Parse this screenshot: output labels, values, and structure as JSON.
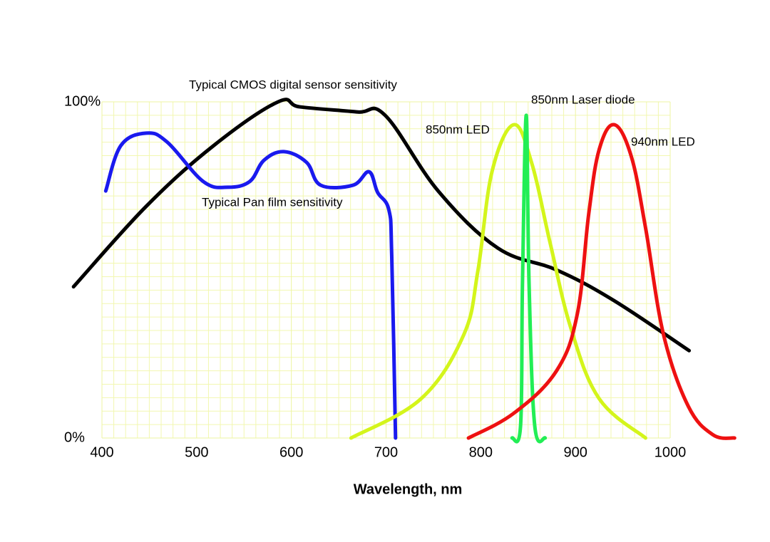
{
  "chart_data": {
    "type": "line",
    "xlabel": "Wavelength, nm",
    "xlim": [
      400,
      1000
    ],
    "xticks": [
      400,
      500,
      600,
      700,
      800,
      900,
      1000
    ],
    "ylim": [
      0,
      100
    ],
    "yticks": [
      {
        "value": 0,
        "label": "0%"
      },
      {
        "value": 100,
        "label": "100%"
      }
    ],
    "grid": true,
    "series": [
      {
        "name": "Typical CMOS digital sensor sensitivity",
        "color": "#000000",
        "x": [
          370,
          447,
          518,
          586,
          609,
          669,
          699,
          755,
          818,
          880,
          940,
          1020
        ],
        "values": [
          45,
          69,
          87,
          100,
          98.5,
          97,
          96,
          73.5,
          56.5,
          50,
          41,
          26
        ]
      },
      {
        "name": "Typical Pan film sensitivity",
        "color": "#1a1aee",
        "x": [
          404,
          420,
          447,
          469,
          507,
          533,
          556,
          571,
          592,
          616,
          631,
          665,
          682,
          691,
          703,
          706,
          710
        ],
        "values": [
          73.5,
          87,
          90.7,
          88,
          76.3,
          74.6,
          76.3,
          82.6,
          85.2,
          82,
          75.2,
          75.2,
          79.2,
          73.1,
          67.8,
          54,
          0
        ]
      },
      {
        "name": "850nm LED",
        "color": "#d4f51b",
        "x": [
          663,
          737,
          782,
          797,
          812,
          835,
          854,
          873,
          895,
          925,
          974
        ],
        "values": [
          0,
          11.7,
          30.7,
          49.8,
          79.4,
          93.2,
          81.6,
          58.3,
          32.8,
          11.7,
          0
        ]
      },
      {
        "name": "850nm Laser diode",
        "color": "#22ee55",
        "x": [
          833,
          842,
          844,
          848,
          851,
          857,
          868
        ],
        "values": [
          0,
          3.6,
          45.6,
          96,
          45.6,
          3.6,
          0
        ]
      },
      {
        "name": "940nm LED",
        "color": "#ee1111",
        "x": [
          787,
          835,
          880,
          902,
          914,
          925,
          941,
          959,
          974,
          993,
          1019,
          1045,
          1068
        ],
        "values": [
          0,
          7.4,
          20,
          37,
          66.7,
          85.8,
          93.2,
          83.7,
          62.5,
          30.7,
          9.5,
          1,
          0
        ]
      }
    ]
  }
}
